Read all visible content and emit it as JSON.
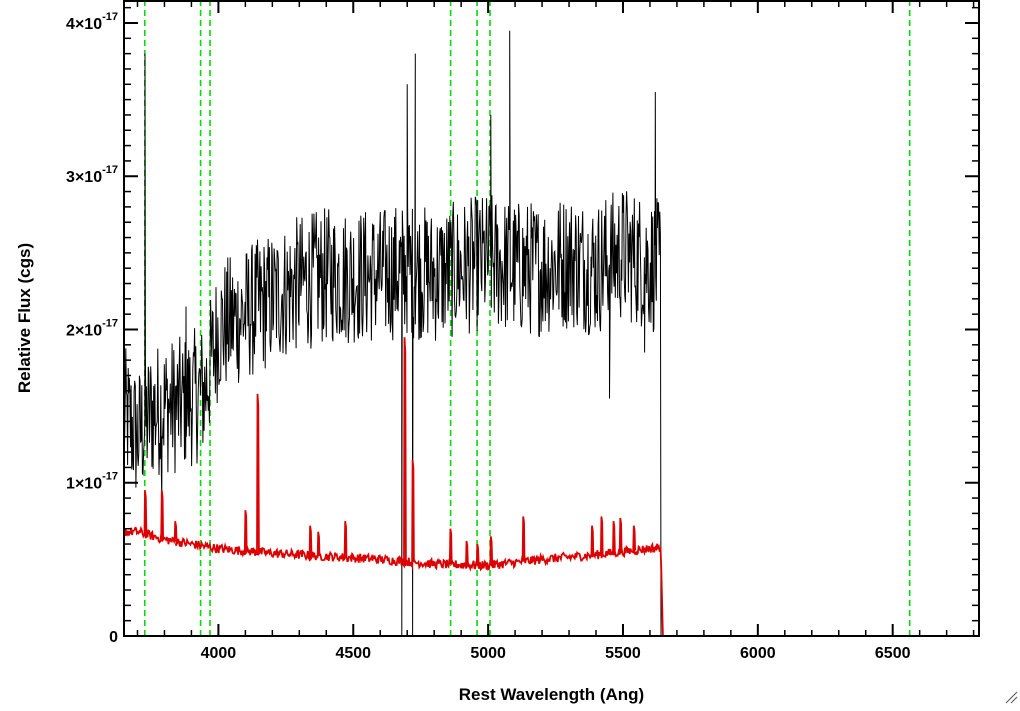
{
  "chart_data": {
    "type": "line",
    "title": "",
    "xlabel": "Rest Wavelength (Ang)",
    "ylabel": "Relative Flux (cgs)",
    "xlim": [
      3650,
      6820
    ],
    "ylim": [
      0,
      4.15e-17
    ],
    "xticks": [
      {
        "value": 4000,
        "label": "4000"
      },
      {
        "value": 4500,
        "label": "4500"
      },
      {
        "value": 5000,
        "label": "5000"
      },
      {
        "value": 5500,
        "label": "5500"
      },
      {
        "value": 6000,
        "label": "6000"
      },
      {
        "value": 6500,
        "label": "6500"
      }
    ],
    "yticks": [
      {
        "value": 0,
        "mantissa": "0",
        "exponent": ""
      },
      {
        "value": 1e-17,
        "mantissa": "1×10",
        "exponent": "-17"
      },
      {
        "value": 2e-17,
        "mantissa": "2×10",
        "exponent": "-17"
      },
      {
        "value": 3e-17,
        "mantissa": "3×10",
        "exponent": "-17"
      },
      {
        "value": 4e-17,
        "mantissa": "4×10",
        "exponent": "-17"
      }
    ],
    "grid": false,
    "reference_lines": {
      "orientation": "vertical",
      "style": "dashed",
      "color": "#00dd00",
      "x": [
        3727,
        3934,
        3969,
        4861,
        4959,
        5007,
        6563
      ]
    },
    "series": [
      {
        "color": "#000000",
        "style": "noisy",
        "x_range": [
          3650,
          5640
        ],
        "anchors": [
          [
            3650,
            1.45e-17
          ],
          [
            3700,
            1.3e-17
          ],
          [
            3750,
            1.45e-17
          ],
          [
            3800,
            1.5e-17
          ],
          [
            3850,
            1.5e-17
          ],
          [
            3900,
            1.55e-17
          ],
          [
            3950,
            1.6e-17
          ],
          [
            4000,
            2e-17
          ],
          [
            4100,
            2.1e-17
          ],
          [
            4200,
            2.2e-17
          ],
          [
            4300,
            2.3e-17
          ],
          [
            4400,
            2.35e-17
          ],
          [
            4500,
            2.35e-17
          ],
          [
            4600,
            2.35e-17
          ],
          [
            4700,
            2.4e-17
          ],
          [
            4800,
            2.35e-17
          ],
          [
            4900,
            2.4e-17
          ],
          [
            5000,
            2.45e-17
          ],
          [
            5100,
            2.4e-17
          ],
          [
            5200,
            2.4e-17
          ],
          [
            5300,
            2.45e-17
          ],
          [
            5400,
            2.4e-17
          ],
          [
            5500,
            2.5e-17
          ],
          [
            5640,
            2.4e-17
          ]
        ],
        "noise_amplitude": 4.5e-18,
        "spikes": [
          [
            3728,
            3.8e-17
          ],
          [
            3790,
            9e-18
          ],
          [
            3880,
            2.15e-17
          ],
          [
            4700,
            3.6e-17
          ],
          [
            4730,
            3.8e-17
          ],
          [
            4680,
            -4e-18
          ],
          [
            4720,
            -3e-18
          ],
          [
            5010,
            3.4e-17
          ],
          [
            5080,
            3.95e-17
          ],
          [
            5620,
            3.55e-17
          ],
          [
            5450,
            1.55e-17
          ],
          [
            5580,
            1.85e-17
          ]
        ],
        "tail": [
          [
            5641,
            0
          ],
          [
            5645,
            0
          ]
        ]
      },
      {
        "color": "#dd0000",
        "style": "smooth",
        "x_range": [
          3650,
          6820
        ],
        "anchors": [
          [
            3650,
            6.8e-18
          ],
          [
            3700,
            6.8e-18
          ],
          [
            3800,
            6.3e-18
          ],
          [
            3900,
            6e-18
          ],
          [
            4000,
            5.7e-18
          ],
          [
            4200,
            5.4e-18
          ],
          [
            4400,
            5.2e-18
          ],
          [
            4600,
            5e-18
          ],
          [
            4800,
            4.7e-18
          ],
          [
            5000,
            4.6e-18
          ],
          [
            5200,
            5e-18
          ],
          [
            5400,
            5.3e-18
          ],
          [
            5500,
            5.5e-18
          ],
          [
            5640,
            5.8e-18
          ],
          [
            5648,
            0
          ],
          [
            6820,
            0
          ]
        ],
        "emission_lines": [
          [
            3728,
            9.5e-18
          ],
          [
            3790,
            9.5e-18
          ],
          [
            3840,
            7.5e-18
          ],
          [
            4100,
            8.2e-18
          ],
          [
            4145,
            1.58e-17
          ],
          [
            4340,
            7.2e-18
          ],
          [
            4370,
            6.8e-18
          ],
          [
            4470,
            7.5e-18
          ],
          [
            4690,
            1.95e-17
          ],
          [
            4720,
            1.15e-17
          ],
          [
            4860,
            7e-18
          ],
          [
            4920,
            6.2e-18
          ],
          [
            4960,
            6e-18
          ],
          [
            5010,
            6.5e-18
          ],
          [
            5130,
            7.8e-18
          ],
          [
            5385,
            7.2e-18
          ],
          [
            5420,
            7.8e-18
          ],
          [
            5465,
            7.5e-18
          ],
          [
            5490,
            7.7e-18
          ],
          [
            5540,
            7.2e-18
          ]
        ]
      }
    ]
  }
}
